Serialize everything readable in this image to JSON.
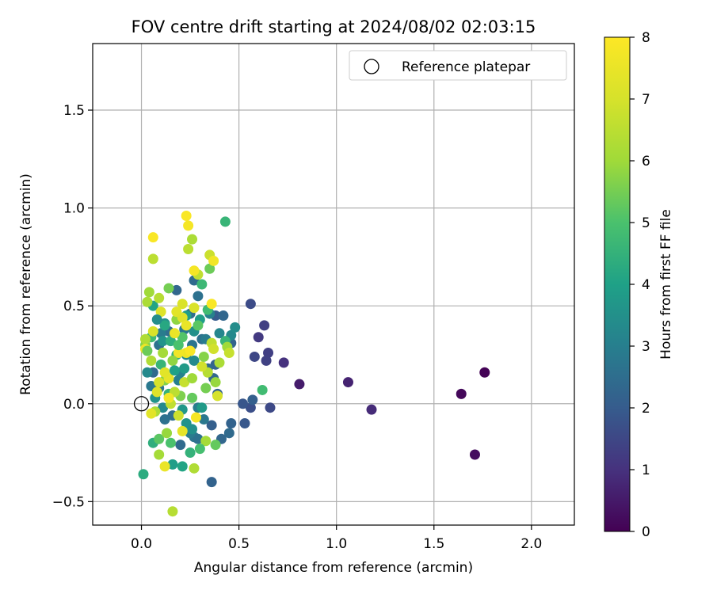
{
  "chart_data": {
    "type": "scatter",
    "title": "FOV centre drift starting at 2024/08/02 02:03:15",
    "xlabel": "Angular distance from reference (arcmin)",
    "ylabel": "Rotation from reference (arcmin)",
    "xlim": [
      -0.25,
      2.22
    ],
    "ylim": [
      -0.62,
      1.84
    ],
    "xticks": [
      0.0,
      0.5,
      1.0,
      1.5,
      2.0
    ],
    "yticks": [
      -0.5,
      0.0,
      0.5,
      1.0,
      1.5
    ],
    "xtick_labels": [
      "0.0",
      "0.5",
      "1.0",
      "1.5",
      "2.0"
    ],
    "ytick_labels": [
      "−0.5",
      "0.0",
      "0.5",
      "1.0",
      "1.5"
    ],
    "grid": true,
    "colormap": "viridis",
    "colorbar": {
      "label": "Hours from first FF file",
      "range": [
        0,
        8
      ],
      "ticks": [
        0,
        1,
        2,
        3,
        4,
        5,
        6,
        7,
        8
      ],
      "tick_labels": [
        "0",
        "1",
        "2",
        "3",
        "4",
        "5",
        "6",
        "7",
        "8"
      ]
    },
    "legend": {
      "position": "top-right",
      "entries": [
        {
          "label": "Reference platepar",
          "marker": "open-circle",
          "color": "#000000"
        }
      ]
    },
    "reference_point": {
      "x": 0.0,
      "y": 0.0
    },
    "points": [
      {
        "x": 1.76,
        "y": 0.16,
        "h": 0.05
      },
      {
        "x": 1.64,
        "y": 0.05,
        "h": 0.15
      },
      {
        "x": 1.71,
        "y": -0.26,
        "h": 0.25
      },
      {
        "x": 0.81,
        "y": 0.1,
        "h": 0.55
      },
      {
        "x": 1.06,
        "y": 0.11,
        "h": 0.7
      },
      {
        "x": 1.18,
        "y": -0.03,
        "h": 0.85
      },
      {
        "x": 0.73,
        "y": 0.21,
        "h": 1.0
      },
      {
        "x": 0.63,
        "y": 0.4,
        "h": 1.3
      },
      {
        "x": 0.6,
        "y": 0.34,
        "h": 1.2
      },
      {
        "x": 0.65,
        "y": 0.26,
        "h": 1.3
      },
      {
        "x": 0.64,
        "y": 0.22,
        "h": 1.35
      },
      {
        "x": 0.58,
        "y": 0.24,
        "h": 1.5
      },
      {
        "x": 0.56,
        "y": 0.51,
        "h": 1.6
      },
      {
        "x": 0.66,
        "y": -0.02,
        "h": 1.55
      },
      {
        "x": 0.56,
        "y": -0.02,
        "h": 1.7
      },
      {
        "x": 0.52,
        "y": 0.0,
        "h": 1.85
      },
      {
        "x": 0.53,
        "y": -0.1,
        "h": 1.9
      },
      {
        "x": 0.57,
        "y": 0.02,
        "h": 2.1
      },
      {
        "x": 0.46,
        "y": 0.31,
        "h": 2.2
      },
      {
        "x": 0.46,
        "y": -0.1,
        "h": 2.2
      },
      {
        "x": 0.45,
        "y": -0.15,
        "h": 2.4
      },
      {
        "x": 0.41,
        "y": -0.18,
        "h": 2.3
      },
      {
        "x": 0.36,
        "y": -0.11,
        "h": 2.1
      },
      {
        "x": 0.36,
        "y": -0.4,
        "h": 2.2
      },
      {
        "x": 0.38,
        "y": 0.45,
        "h": 2.0
      },
      {
        "x": 0.38,
        "y": 0.2,
        "h": 2.2
      },
      {
        "x": 0.42,
        "y": 0.45,
        "h": 2.3
      },
      {
        "x": 0.39,
        "y": 0.05,
        "h": 2.2
      },
      {
        "x": 0.37,
        "y": 0.13,
        "h": 2.3
      },
      {
        "x": 0.34,
        "y": 0.18,
        "h": 2.4
      },
      {
        "x": 0.27,
        "y": 0.63,
        "h": 2.4
      },
      {
        "x": 0.18,
        "y": 0.58,
        "h": 2.3
      },
      {
        "x": 0.29,
        "y": 0.55,
        "h": 2.6
      },
      {
        "x": 0.25,
        "y": 0.46,
        "h": 2.5
      },
      {
        "x": 0.22,
        "y": 0.38,
        "h": 2.8
      },
      {
        "x": 0.31,
        "y": 0.33,
        "h": 2.6
      },
      {
        "x": 0.33,
        "y": 0.33,
        "h": 2.9
      },
      {
        "x": 0.26,
        "y": 0.3,
        "h": 2.7
      },
      {
        "x": 0.14,
        "y": 0.37,
        "h": 2.5
      },
      {
        "x": 0.1,
        "y": 0.36,
        "h": 2.9
      },
      {
        "x": 0.09,
        "y": 0.3,
        "h": 2.6
      },
      {
        "x": 0.06,
        "y": 0.16,
        "h": 2.4
      },
      {
        "x": 0.09,
        "y": 0.08,
        "h": 2.7
      },
      {
        "x": 0.05,
        "y": 0.09,
        "h": 2.8
      },
      {
        "x": 0.12,
        "y": -0.08,
        "h": 2.6
      },
      {
        "x": 0.2,
        "y": -0.21,
        "h": 2.4
      },
      {
        "x": 0.27,
        "y": -0.17,
        "h": 2.7
      },
      {
        "x": 0.29,
        "y": -0.18,
        "h": 2.6
      },
      {
        "x": 0.25,
        "y": -0.15,
        "h": 2.9
      },
      {
        "x": 0.32,
        "y": -0.08,
        "h": 2.8
      },
      {
        "x": 0.29,
        "y": -0.02,
        "h": 2.9
      },
      {
        "x": 0.16,
        "y": -0.06,
        "h": 2.5
      },
      {
        "x": 0.19,
        "y": 0.12,
        "h": 3.0
      },
      {
        "x": 0.2,
        "y": 0.16,
        "h": 3.1
      },
      {
        "x": 0.23,
        "y": 0.25,
        "h": 3.2
      },
      {
        "x": 0.27,
        "y": 0.22,
        "h": 3.3
      },
      {
        "x": 0.35,
        "y": 0.46,
        "h": 3.1
      },
      {
        "x": 0.46,
        "y": 0.35,
        "h": 3.3
      },
      {
        "x": 0.48,
        "y": 0.39,
        "h": 3.4
      },
      {
        "x": 0.4,
        "y": 0.36,
        "h": 3.2
      },
      {
        "x": 0.27,
        "y": 0.37,
        "h": 3.5
      },
      {
        "x": 0.12,
        "y": 0.41,
        "h": 3.5
      },
      {
        "x": 0.11,
        "y": 0.32,
        "h": 3.6
      },
      {
        "x": 0.03,
        "y": 0.16,
        "h": 3.3
      },
      {
        "x": 0.07,
        "y": 0.03,
        "h": 3.6
      },
      {
        "x": 0.11,
        "y": -0.02,
        "h": 3.3
      },
      {
        "x": 0.21,
        "y": -0.03,
        "h": 3.7
      },
      {
        "x": 0.23,
        "y": -0.1,
        "h": 3.6
      },
      {
        "x": 0.26,
        "y": -0.13,
        "h": 3.5
      },
      {
        "x": 0.31,
        "y": -0.02,
        "h": 3.8
      },
      {
        "x": 0.22,
        "y": 0.18,
        "h": 3.8
      },
      {
        "x": 0.3,
        "y": 0.43,
        "h": 3.9
      },
      {
        "x": 0.23,
        "y": 0.45,
        "h": 3.9
      },
      {
        "x": 0.16,
        "y": -0.31,
        "h": 3.9
      },
      {
        "x": 0.21,
        "y": -0.32,
        "h": 4.1
      },
      {
        "x": 0.01,
        "y": -0.36,
        "h": 4.3
      },
      {
        "x": 0.06,
        "y": -0.2,
        "h": 4.4
      },
      {
        "x": 0.06,
        "y": 0.5,
        "h": 4.1
      },
      {
        "x": 0.43,
        "y": 0.93,
        "h": 4.6
      },
      {
        "x": 0.31,
        "y": 0.61,
        "h": 4.7
      },
      {
        "x": 0.12,
        "y": 0.4,
        "h": 4.2
      },
      {
        "x": 0.15,
        "y": 0.32,
        "h": 4.4
      },
      {
        "x": 0.18,
        "y": 0.25,
        "h": 4.5
      },
      {
        "x": 0.1,
        "y": 0.2,
        "h": 4.6
      },
      {
        "x": 0.14,
        "y": 0.05,
        "h": 4.5
      },
      {
        "x": 0.25,
        "y": -0.25,
        "h": 4.5
      },
      {
        "x": 0.34,
        "y": 0.48,
        "h": 4.8
      },
      {
        "x": 0.43,
        "y": 0.32,
        "h": 4.6
      },
      {
        "x": 0.62,
        "y": 0.07,
        "h": 4.8
      },
      {
        "x": 0.05,
        "y": 0.34,
        "h": 4.8
      },
      {
        "x": 0.15,
        "y": -0.2,
        "h": 5.0
      },
      {
        "x": 0.09,
        "y": -0.18,
        "h": 5.2
      },
      {
        "x": 0.38,
        "y": -0.21,
        "h": 5.3
      },
      {
        "x": 0.21,
        "y": 0.34,
        "h": 5.1
      },
      {
        "x": 0.29,
        "y": 0.4,
        "h": 5.2
      },
      {
        "x": 0.14,
        "y": 0.59,
        "h": 5.5
      },
      {
        "x": 0.35,
        "y": 0.69,
        "h": 5.4
      },
      {
        "x": 0.26,
        "y": 0.03,
        "h": 5.3
      },
      {
        "x": 0.2,
        "y": 0.04,
        "h": 5.6
      },
      {
        "x": 0.33,
        "y": 0.08,
        "h": 5.5
      },
      {
        "x": 0.02,
        "y": 0.3,
        "h": 5.7
      },
      {
        "x": 0.12,
        "y": 0.12,
        "h": 5.6
      },
      {
        "x": 0.18,
        "y": 0.43,
        "h": 5.8
      },
      {
        "x": 0.38,
        "y": 0.11,
        "h": 5.9
      },
      {
        "x": 0.44,
        "y": 0.29,
        "h": 6.0
      },
      {
        "x": 0.09,
        "y": -0.26,
        "h": 6.1
      },
      {
        "x": 0.27,
        "y": -0.33,
        "h": 6.3
      },
      {
        "x": 0.33,
        "y": -0.19,
        "h": 6.1
      },
      {
        "x": 0.16,
        "y": -0.55,
        "h": 6.4
      },
      {
        "x": 0.07,
        "y": -0.04,
        "h": 6.2
      },
      {
        "x": 0.05,
        "y": 0.22,
        "h": 6.3
      },
      {
        "x": 0.04,
        "y": 0.57,
        "h": 6.0
      },
      {
        "x": 0.03,
        "y": 0.52,
        "h": 6.2
      },
      {
        "x": 0.09,
        "y": 0.54,
        "h": 6.4
      },
      {
        "x": 0.26,
        "y": 0.84,
        "h": 6.2
      },
      {
        "x": 0.24,
        "y": 0.79,
        "h": 6.5
      },
      {
        "x": 0.29,
        "y": 0.66,
        "h": 6.6
      },
      {
        "x": 0.35,
        "y": 0.76,
        "h": 6.8
      },
      {
        "x": 0.06,
        "y": 0.74,
        "h": 6.5
      },
      {
        "x": 0.02,
        "y": 0.33,
        "h": 6.3
      },
      {
        "x": 0.11,
        "y": 0.26,
        "h": 6.1
      },
      {
        "x": 0.17,
        "y": 0.06,
        "h": 6.5
      },
      {
        "x": 0.22,
        "y": 0.11,
        "h": 6.7
      },
      {
        "x": 0.15,
        "y": 0.0,
        "h": 6.6
      },
      {
        "x": 0.19,
        "y": -0.06,
        "h": 6.8
      },
      {
        "x": 0.34,
        "y": 0.16,
        "h": 6.4
      },
      {
        "x": 0.36,
        "y": 0.31,
        "h": 6.6
      },
      {
        "x": 0.37,
        "y": 0.28,
        "h": 6.9
      },
      {
        "x": 0.45,
        "y": 0.26,
        "h": 6.7
      },
      {
        "x": 0.39,
        "y": 0.04,
        "h": 7.0
      },
      {
        "x": 0.27,
        "y": 0.49,
        "h": 7.1
      },
      {
        "x": 0.21,
        "y": 0.51,
        "h": 7.1
      },
      {
        "x": 0.18,
        "y": 0.47,
        "h": 7.3
      },
      {
        "x": 0.1,
        "y": 0.47,
        "h": 7.2
      },
      {
        "x": 0.06,
        "y": 0.37,
        "h": 7.1
      },
      {
        "x": 0.08,
        "y": 0.06,
        "h": 7.2
      },
      {
        "x": 0.05,
        "y": -0.05,
        "h": 7.3
      },
      {
        "x": 0.21,
        "y": -0.14,
        "h": 7.4
      },
      {
        "x": 0.12,
        "y": -0.32,
        "h": 7.5
      },
      {
        "x": 0.23,
        "y": 0.26,
        "h": 7.6
      },
      {
        "x": 0.17,
        "y": 0.36,
        "h": 7.5
      },
      {
        "x": 0.14,
        "y": 0.13,
        "h": 7.4
      },
      {
        "x": 0.28,
        "y": -0.07,
        "h": 7.8
      },
      {
        "x": 0.36,
        "y": 0.51,
        "h": 7.9
      },
      {
        "x": 0.24,
        "y": 0.91,
        "h": 7.8
      },
      {
        "x": 0.23,
        "y": 0.96,
        "h": 7.9
      },
      {
        "x": 0.27,
        "y": 0.68,
        "h": 7.8
      },
      {
        "x": 0.37,
        "y": 0.73,
        "h": 7.7
      },
      {
        "x": 0.06,
        "y": 0.85,
        "h": 7.9
      },
      {
        "x": 0.02,
        "y": 0.28,
        "h": 7.6
      },
      {
        "x": 0.19,
        "y": 0.26,
        "h": 7.7
      },
      {
        "x": 0.25,
        "y": 0.27,
        "h": 7.9
      },
      {
        "x": 0.14,
        "y": 0.03,
        "h": 7.7
      },
      {
        "x": 0.12,
        "y": 0.16,
        "h": 7.3
      },
      {
        "x": 0.21,
        "y": 0.44,
        "h": 7.2
      },
      {
        "x": 0.23,
        "y": 0.4,
        "h": 7.5
      },
      {
        "x": 0.09,
        "y": 0.11,
        "h": 7.0
      },
      {
        "x": 0.31,
        "y": 0.19,
        "h": 6.9
      },
      {
        "x": 0.26,
        "y": 0.13,
        "h": 6.0
      },
      {
        "x": 0.16,
        "y": 0.22,
        "h": 5.8
      },
      {
        "x": 0.03,
        "y": 0.27,
        "h": 5.4
      },
      {
        "x": 0.19,
        "y": 0.3,
        "h": 5.0
      },
      {
        "x": 0.4,
        "y": 0.21,
        "h": 6.2
      },
      {
        "x": 0.32,
        "y": 0.24,
        "h": 5.7
      },
      {
        "x": 0.13,
        "y": -0.15,
        "h": 5.9
      },
      {
        "x": 0.3,
        "y": -0.23,
        "h": 4.9
      },
      {
        "x": 0.17,
        "y": 0.17,
        "h": 4.0
      },
      {
        "x": 0.08,
        "y": 0.43,
        "h": 3.4
      }
    ]
  }
}
